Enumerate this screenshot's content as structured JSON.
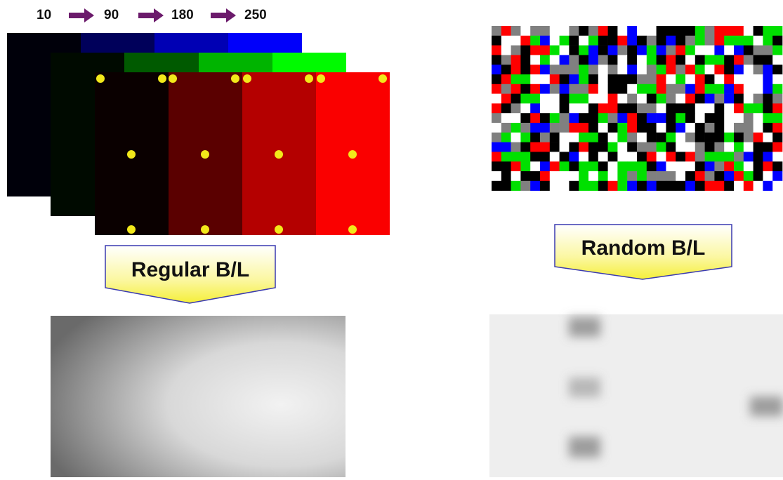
{
  "levels": {
    "labels": [
      "10",
      "90",
      "180",
      "250"
    ]
  },
  "callouts": {
    "regular": "Regular B/L",
    "random": "Random B/L"
  }
}
